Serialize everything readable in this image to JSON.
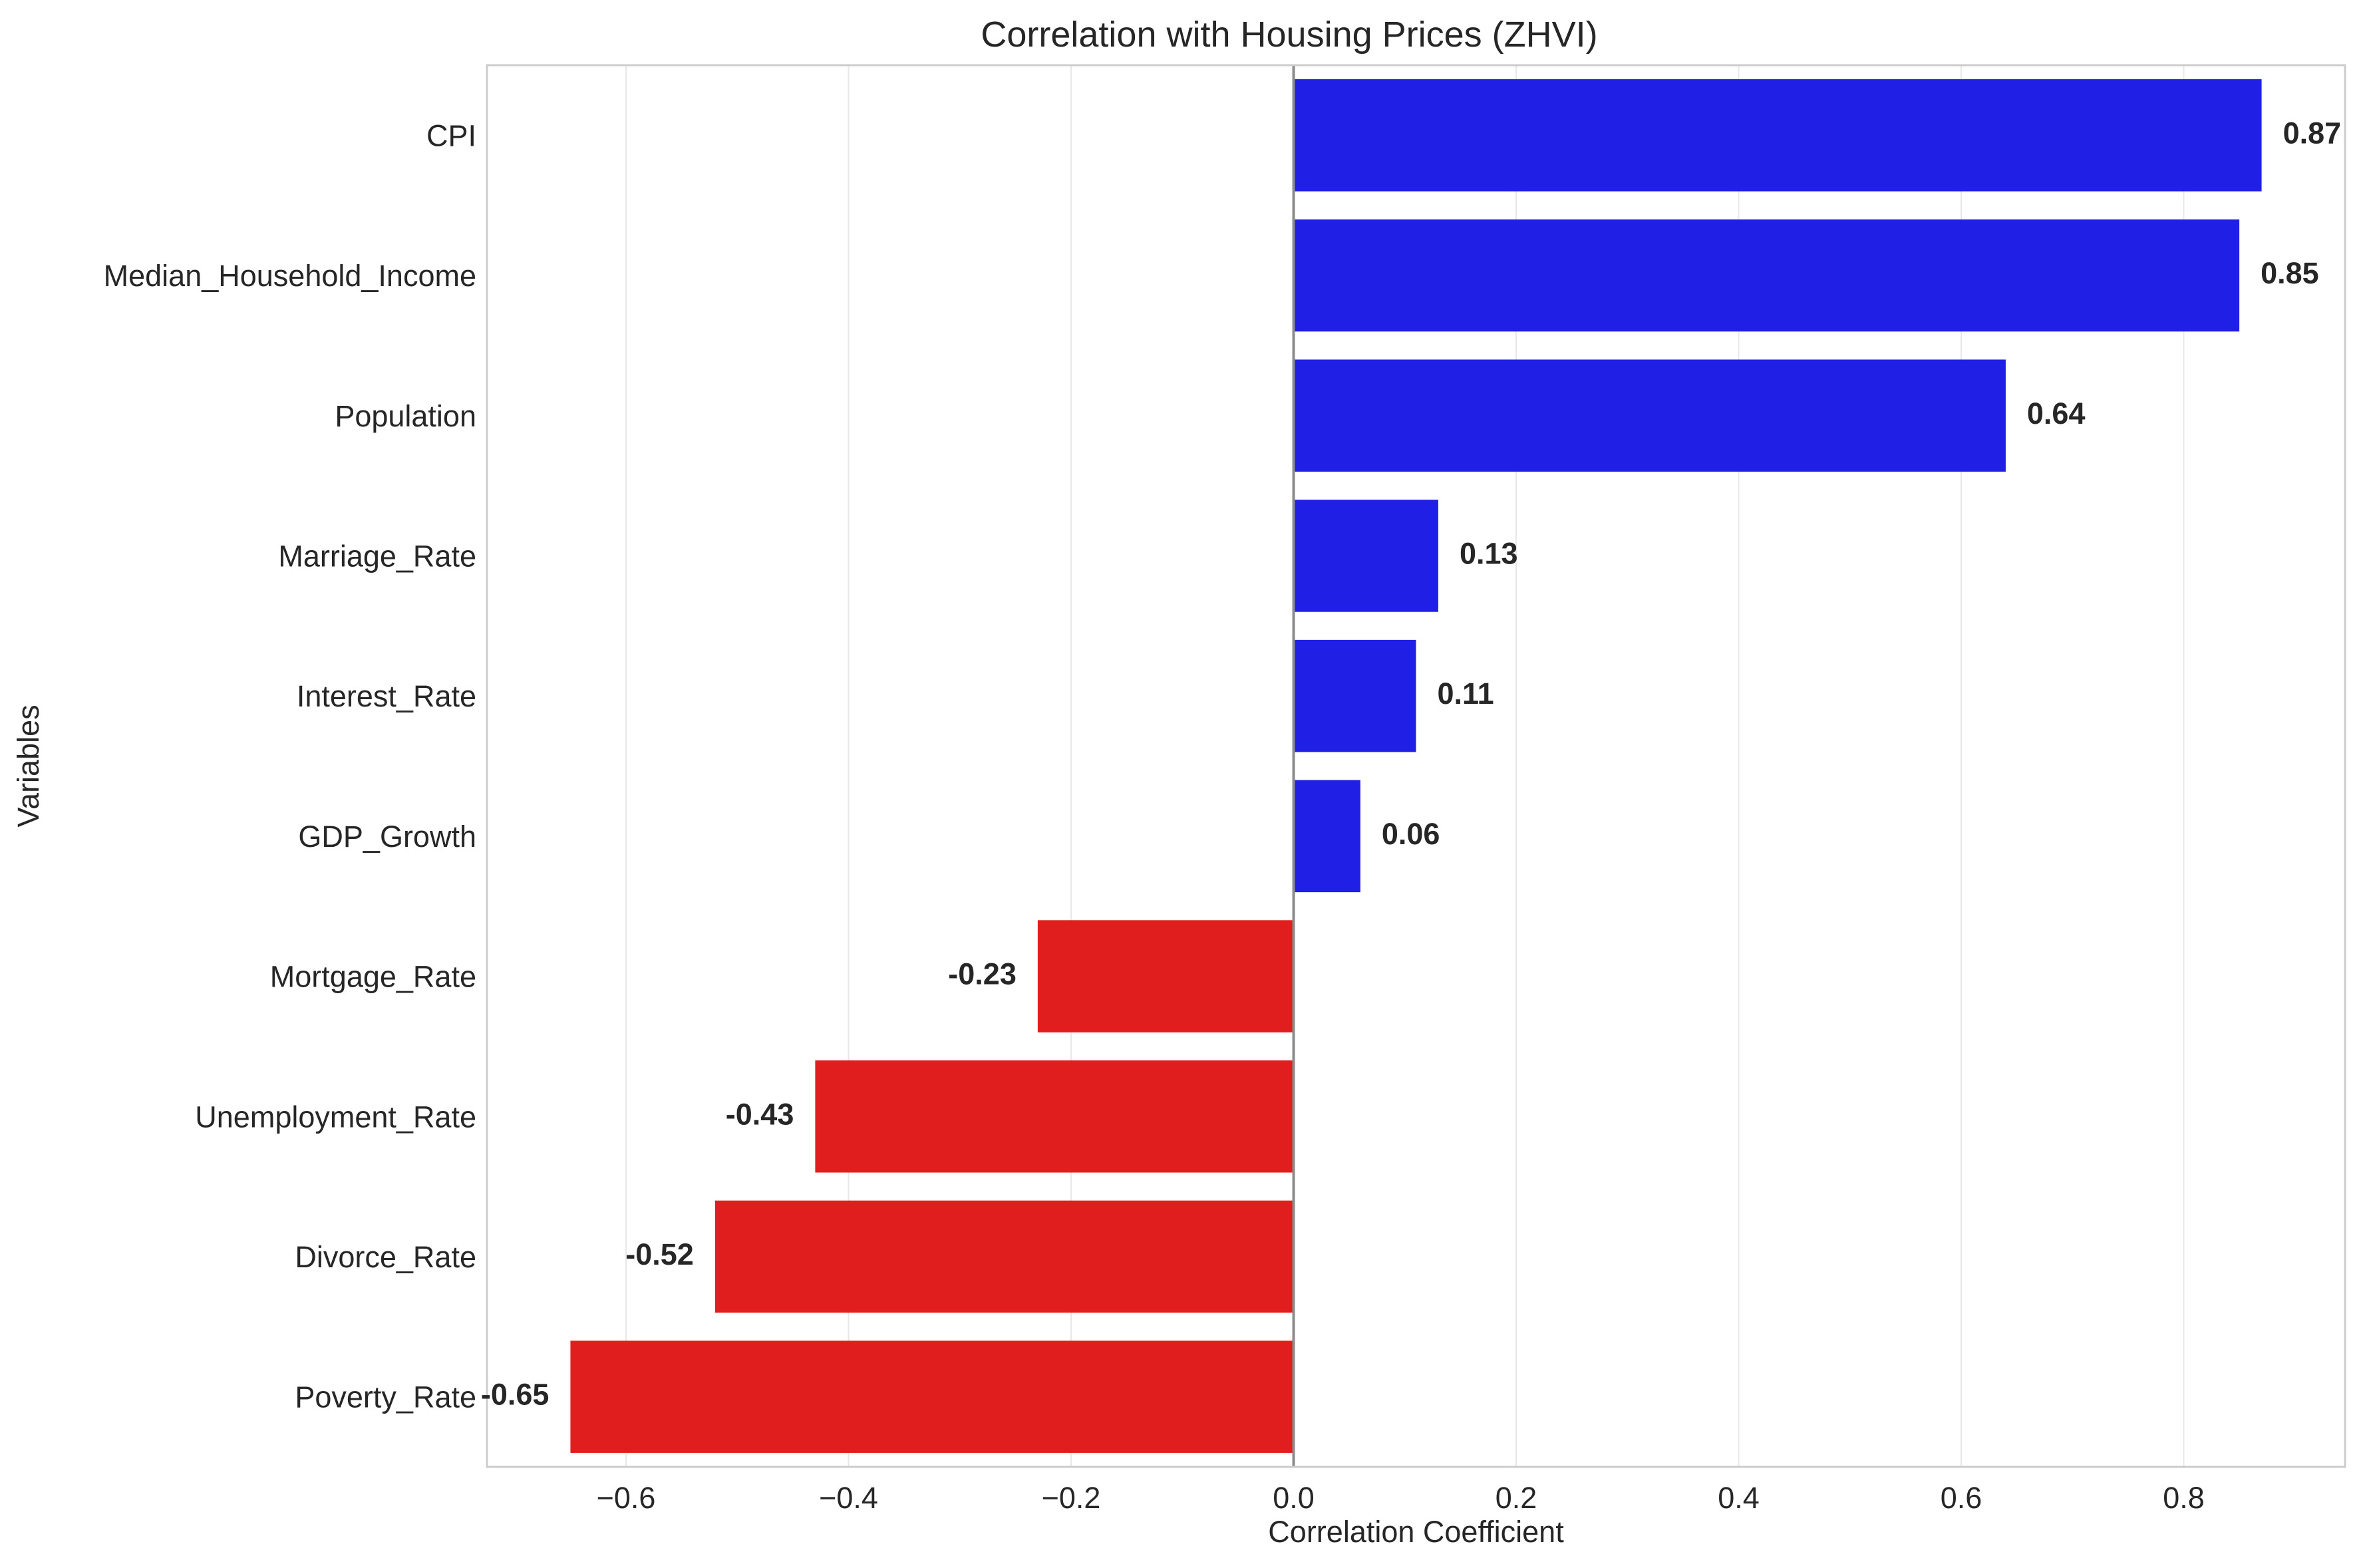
{
  "chart_data": {
    "type": "bar",
    "orientation": "horizontal",
    "title": "Correlation with Housing Prices (ZHVI)",
    "xlabel": "Correlation Coefficient",
    "ylabel": "Variables",
    "xlim": [
      -0.725,
      0.945
    ],
    "xticks": [
      -0.6,
      -0.4,
      -0.2,
      0.0,
      0.2,
      0.4,
      0.6,
      0.8
    ],
    "xtick_labels": [
      "−0.6",
      "−0.4",
      "−0.2",
      "0.0",
      "0.2",
      "0.4",
      "0.6",
      "0.8"
    ],
    "grid": "vertical",
    "categories": [
      "CPI",
      "Median_Household_Income",
      "Population",
      "Marriage_Rate",
      "Interest_Rate",
      "GDP_Growth",
      "Mortgage_Rate",
      "Unemployment_Rate",
      "Divorce_Rate",
      "Poverty_Rate"
    ],
    "values": [
      0.87,
      0.85,
      0.64,
      0.13,
      0.11,
      0.06,
      -0.23,
      -0.43,
      -0.52,
      -0.65
    ],
    "value_labels": [
      "0.87",
      "0.85",
      "0.64",
      "0.13",
      "0.11",
      "0.06",
      "-0.23",
      "-0.43",
      "-0.52",
      "-0.65"
    ],
    "colors": {
      "positive": "#1f1fe5",
      "negative": "#e01e1e",
      "zero_line": "#8c8c8c",
      "grid": "#e8e8e8",
      "frame": "#cccccc"
    }
  }
}
